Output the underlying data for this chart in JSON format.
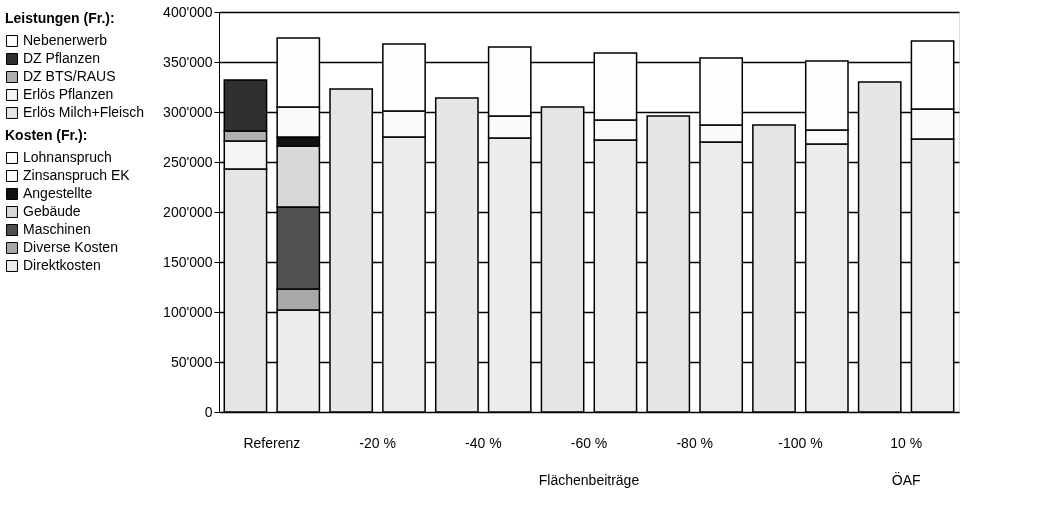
{
  "chart_data": {
    "type": "bar",
    "stacked": true,
    "categories": [
      "Referenz",
      null,
      "-20 %",
      null,
      "-40 %",
      null,
      "-60 %",
      null,
      "-80 %",
      null,
      "-100 %",
      null,
      "10 %",
      null
    ],
    "legend_title": [
      "Leistungen (Fr.):",
      "Kosten (Fr.):"
    ],
    "annotations": [
      "Flächenbeiträge",
      "ÖAF"
    ],
    "ylim": [
      0,
      400000
    ],
    "yticks": [
      {
        "value": 0,
        "label": "0"
      },
      {
        "value": 50000,
        "label": "50'000"
      },
      {
        "value": 100000,
        "label": "100'000"
      },
      {
        "value": 150000,
        "label": "150'000"
      },
      {
        "value": 200000,
        "label": "200'000"
      },
      {
        "value": 250000,
        "label": "250'000"
      },
      {
        "value": 300000,
        "label": "300'000"
      },
      {
        "value": 350000,
        "label": "350'000"
      },
      {
        "value": 400000,
        "label": "400'000"
      }
    ],
    "grid": "y",
    "legend": "left",
    "series": [
      {
        "name": "Erlös Milch+Fleisch",
        "color": "#e6e6e6",
        "values": [
          243000,
          null,
          323000,
          null,
          314000,
          null,
          305000,
          null,
          296000,
          null,
          287000,
          null,
          330000,
          null
        ]
      },
      {
        "name": "Erlös Pflanzen",
        "color": "#f4f4f4",
        "values": [
          28000,
          null,
          null,
          null,
          null,
          null,
          null,
          null,
          null,
          null,
          null,
          null,
          null,
          null
        ]
      },
      {
        "name": "DZ BTS/RAUS",
        "color": "#b0b0b0",
        "values": [
          10000,
          null,
          null,
          null,
          null,
          null,
          null,
          null,
          null,
          null,
          null,
          null,
          null,
          null
        ]
      },
      {
        "name": "DZ Pflanzen",
        "color": "#303030",
        "values": [
          51000,
          null,
          null,
          null,
          null,
          null,
          null,
          null,
          null,
          null,
          null,
          null,
          null,
          null
        ]
      },
      {
        "name": "Nebenerwerb",
        "color": "#ffffff",
        "values": [
          null,
          null,
          null,
          null,
          null,
          null,
          null,
          null,
          null,
          null,
          null,
          null,
          null,
          null
        ]
      },
      {
        "name": "Direktkosten",
        "color": "#ececec",
        "values": [
          null,
          102000,
          null,
          275000,
          null,
          274000,
          null,
          272000,
          null,
          270000,
          null,
          268000,
          null,
          273000
        ]
      },
      {
        "name": "Diverse Kosten",
        "color": "#a8a8a8",
        "values": [
          null,
          21000,
          null,
          null,
          null,
          null,
          null,
          null,
          null,
          null,
          null,
          null,
          null,
          null
        ]
      },
      {
        "name": "Maschinen",
        "color": "#505050",
        "values": [
          null,
          82000,
          null,
          null,
          null,
          null,
          null,
          null,
          null,
          null,
          null,
          null,
          null,
          null
        ]
      },
      {
        "name": "Gebäude",
        "color": "#d8d8d8",
        "values": [
          null,
          61000,
          null,
          null,
          null,
          null,
          null,
          null,
          null,
          null,
          null,
          null,
          null,
          null
        ]
      },
      {
        "name": "Angestellte",
        "color": "#111111",
        "values": [
          null,
          9000,
          null,
          null,
          null,
          null,
          null,
          null,
          null,
          null,
          null,
          null,
          null,
          null
        ]
      },
      {
        "name": "Zinsanspruch EK",
        "color": "#fafafa",
        "values": [
          null,
          30000,
          null,
          26000,
          null,
          22000,
          null,
          20000,
          null,
          17000,
          null,
          14000,
          null,
          30000
        ]
      },
      {
        "name": "Lohnanspruch",
        "color": "#fefefe",
        "values": [
          null,
          69000,
          null,
          67000,
          null,
          69000,
          null,
          67000,
          null,
          67000,
          null,
          69000,
          null,
          68000
        ]
      }
    ]
  }
}
